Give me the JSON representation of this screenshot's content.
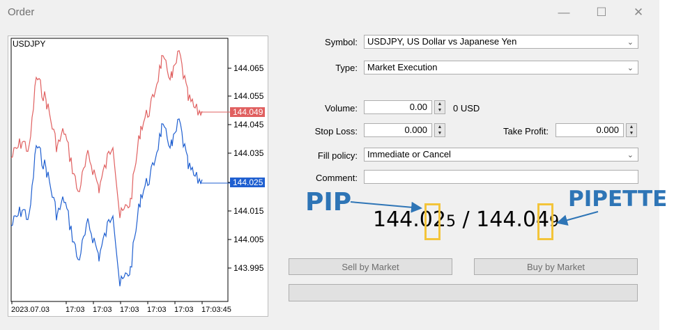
{
  "window": {
    "title": "Order",
    "minimize_icon": "minimize-icon",
    "maximize_icon": "maximize-icon",
    "close_icon": "close-icon"
  },
  "chart": {
    "symbol": "USDJPY",
    "y_ticks": [
      "144.065",
      "144.055",
      "144.045",
      "144.035",
      "144.025",
      "144.015",
      "144.005",
      "143.995"
    ],
    "x_ticks": [
      "2023.07.03",
      "17:03",
      "17:03",
      "17:03",
      "17:03",
      "17:03",
      "17:03:45"
    ],
    "ask_label": "144.049",
    "bid_label": "144.025",
    "ask_color": "#e06060",
    "bid_color": "#1f5fd0"
  },
  "form": {
    "symbol_label": "Symbol:",
    "symbol_value": "USDJPY, US Dollar vs Japanese Yen",
    "type_label": "Type:",
    "type_value": "Market Execution",
    "volume_label": "Volume:",
    "volume_value": "0.00",
    "volume_unit": "0 USD",
    "stop_loss_label": "Stop Loss:",
    "stop_loss_value": "0.000",
    "take_profit_label": "Take Profit:",
    "take_profit_value": "0.000",
    "fill_policy_label": "Fill policy:",
    "fill_policy_value": "Immediate or Cancel",
    "comment_label": "Comment:",
    "comment_value": ""
  },
  "prices": {
    "bid_main": "144.02",
    "bid_pipette": "5",
    "separator": " / ",
    "ask_main": "144.04",
    "ask_pipette": "9"
  },
  "annotations": {
    "pip": "PIP",
    "pipette": "PIPETTE",
    "highlight_color": "#f3c43a",
    "callout_color": "#2e75b6"
  },
  "buttons": {
    "sell": "Sell by Market",
    "buy": "Buy by Market",
    "bottom": ""
  }
}
